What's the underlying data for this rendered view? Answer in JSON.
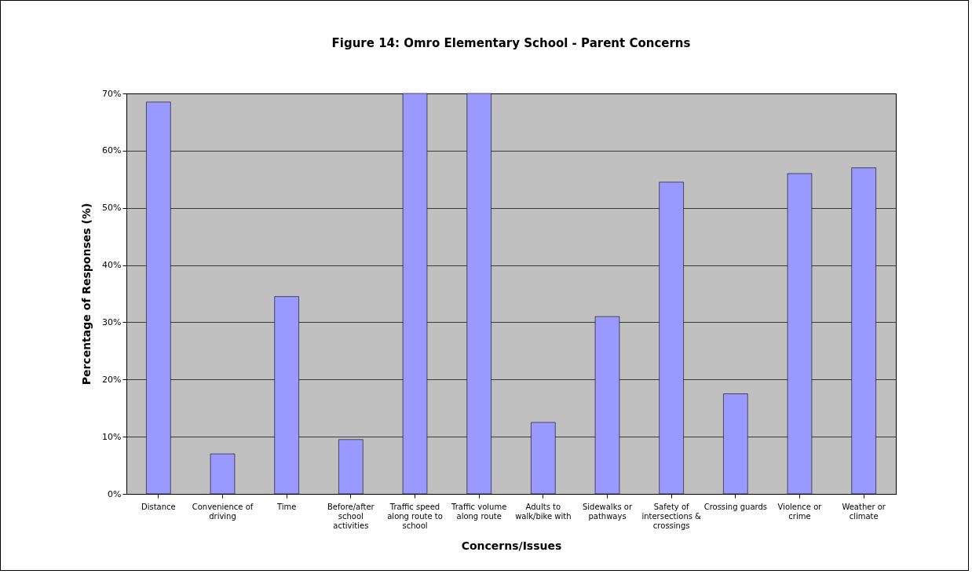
{
  "chart_data": {
    "type": "bar",
    "title": "Figure 14: Omro Elementary School - Parent Concerns",
    "xlabel": "Concerns/Issues",
    "ylabel": "Percentage of Responses (%)",
    "categories": [
      "Distance",
      "Convenience of driving",
      "Time",
      "Before/after school activities",
      "Traffic speed along route to school",
      "Traffic volume along route",
      "Adults to walk/bike with",
      "Sidewalks or pathways",
      "Safety of intersections & crossings",
      "Crossing guards",
      "Violence or crime",
      "Weather or climate"
    ],
    "values": [
      68.5,
      7,
      34.5,
      9.5,
      70,
      70,
      12.5,
      31,
      54.5,
      17.5,
      56,
      57
    ],
    "color": "#9999ff",
    "ylim": [
      0,
      70
    ],
    "yticks": [
      {
        "value": 0,
        "label": "0%"
      },
      {
        "value": 10,
        "label": "10%"
      },
      {
        "value": 20,
        "label": "20%"
      },
      {
        "value": 30,
        "label": "30%"
      },
      {
        "value": 40,
        "label": "40%"
      },
      {
        "value": 50,
        "label": "50%"
      },
      {
        "value": 60,
        "label": "60%"
      },
      {
        "value": 70,
        "label": "70%"
      }
    ],
    "grid": "y"
  }
}
